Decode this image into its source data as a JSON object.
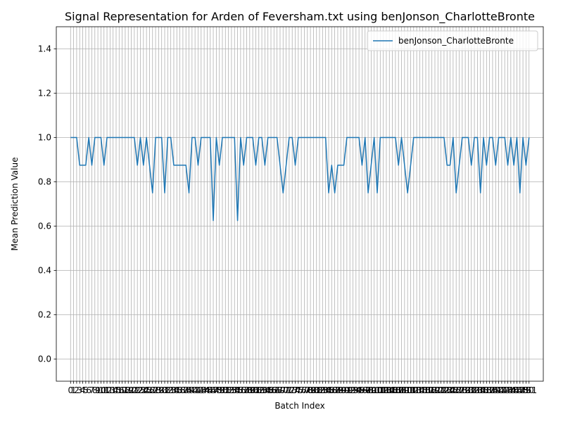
{
  "chart_data": {
    "type": "line",
    "title": "Signal Representation for Arden of Feversham.txt using benJonson_CharlotteBronte",
    "xlabel": "Batch Index",
    "ylabel": "Mean Prediction Value",
    "xlim": [
      -4.7,
      155.7
    ],
    "ylim": [
      -0.1,
      1.5
    ],
    "yticks": [
      "0.0",
      "0.2",
      "0.4",
      "0.6",
      "0.8",
      "1.0",
      "1.2",
      "1.4"
    ],
    "xticks_count": 152,
    "grid": true,
    "legend_position": "upper right",
    "series": [
      {
        "name": "benJonson_CharlotteBronte",
        "color": "#1f77b4",
        "values": [
          1,
          1,
          1,
          0.875,
          0.875,
          0.875,
          1,
          0.875,
          1,
          1,
          1,
          0.875,
          1,
          1,
          1,
          1,
          1,
          1,
          1,
          1,
          1,
          1,
          0.875,
          1,
          0.875,
          1,
          0.875,
          0.75,
          1,
          1,
          1,
          0.75,
          1,
          1,
          0.875,
          0.875,
          0.875,
          0.875,
          0.875,
          0.75,
          1,
          1,
          0.875,
          1,
          1,
          1,
          1,
          0.625,
          1,
          0.875,
          1,
          1,
          1,
          1,
          1,
          0.625,
          1,
          0.875,
          1,
          1,
          1,
          0.875,
          1,
          1,
          0.875,
          1,
          1,
          1,
          1,
          0.875,
          0.75,
          0.875,
          1,
          1,
          0.875,
          1,
          1,
          1,
          1,
          1,
          1,
          1,
          1,
          1,
          1,
          0.75,
          0.875,
          0.75,
          0.875,
          0.875,
          0.875,
          1,
          1,
          1,
          1,
          1,
          0.875,
          1,
          0.75,
          0.875,
          1,
          0.75,
          1,
          1,
          1,
          1,
          1,
          1,
          0.875,
          1,
          0.875,
          0.75,
          0.875,
          1,
          1,
          1,
          1,
          1,
          1,
          1,
          1,
          1,
          1,
          1,
          0.875,
          0.875,
          1,
          0.75,
          0.875,
          1,
          1,
          1,
          0.875,
          1,
          1,
          0.75,
          1,
          0.875,
          1,
          1,
          0.875,
          1,
          1,
          1,
          0.875,
          1,
          0.875,
          1,
          0.75,
          1,
          0.875,
          1
        ]
      }
    ]
  }
}
